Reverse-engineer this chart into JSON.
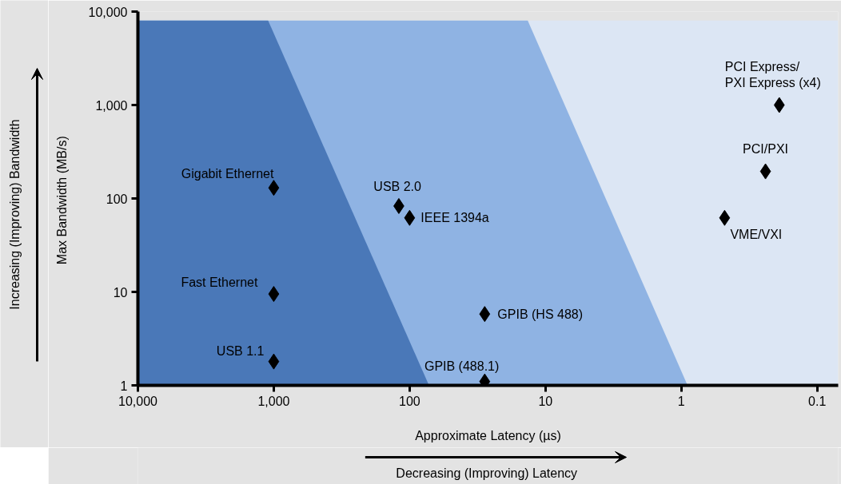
{
  "chart_data": {
    "type": "scatter",
    "xlabel": "Approximate Latency (µs)",
    "ylabel": "Max  Bandwidth (MB/s)",
    "log": "xy",
    "xlim": [
      10000,
      0.07
    ],
    "ylim": [
      1,
      10000
    ],
    "xticks": [
      {
        "value": 10000,
        "label": "10,000"
      },
      {
        "value": 1000,
        "label": "1,000"
      },
      100,
      10,
      1,
      0.1
    ],
    "yticks": [
      1,
      10,
      100,
      {
        "value": 1000,
        "label": "1,000"
      },
      {
        "value": 10000,
        "label": "10,000"
      }
    ],
    "bands": [
      {
        "axis": "y",
        "from": 1,
        "to": 8000,
        "color": "#dce6f4"
      }
    ],
    "series": [
      {
        "type": "area",
        "color": "#8fb3e3",
        "x": [
          10000,
          13.5,
          0.9
        ],
        "values": [
          8000,
          8000,
          1
        ]
      },
      {
        "type": "area",
        "color": "#4a78b8",
        "x": [
          10000,
          1100,
          72
        ],
        "values": [
          8000,
          8000,
          1
        ]
      },
      {
        "marker": "diamond",
        "color": "#000000",
        "x": [
          1000,
          1000,
          1000,
          120,
          100,
          28,
          28,
          0.48,
          0.24,
          0.19
        ],
        "values": [
          130,
          9.5,
          1.8,
          83,
          62,
          5.8,
          1.1,
          62,
          195,
          1000
        ]
      }
    ],
    "annotations": [
      {
        "text": "Gigabit Ethernet",
        "x": 1000,
        "y": 130
      },
      {
        "text": "Fast Ethernet",
        "x": 1000,
        "y": 9.5
      },
      {
        "text": "USB 1.1",
        "x": 1000,
        "y": 1.8
      },
      {
        "text": "USB 2.0",
        "x": 120,
        "y": 83
      },
      {
        "text": "IEEE 1394a",
        "x": 100,
        "y": 62
      },
      {
        "text": "GPIB (HS 488)",
        "x": 28,
        "y": 5.8
      },
      {
        "text": "GPIB (488.1)",
        "x": 28,
        "y": 1.1
      },
      {
        "text": "VME/VXI",
        "x": 0.48,
        "y": 62
      },
      {
        "text": "PCI/PXI",
        "x": 0.24,
        "y": 195
      },
      {
        "text": "PCI Express/\nPXI Express (x4)",
        "x": 0.19,
        "y": 1000
      },
      "Increasing (Improving) Bandwidth",
      "Decreasing (Improving) Latency"
    ]
  }
}
